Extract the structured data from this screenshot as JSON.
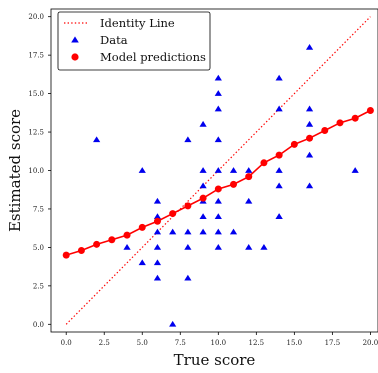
{
  "chart_data": {
    "type": "scatter",
    "xlabel": "True score",
    "ylabel": "Estimated score",
    "xlim": [
      -1,
      20.5
    ],
    "ylim": [
      -0.5,
      20.5
    ],
    "x_ticks": [
      0.0,
      2.5,
      5.0,
      7.5,
      10.0,
      12.5,
      15.0,
      17.5,
      20.0
    ],
    "x_tick_labels": [
      "0.0",
      "2.5",
      "5.0",
      "7.5",
      "10.0",
      "12.5",
      "15.0",
      "17.5",
      "20.0"
    ],
    "y_ticks": [
      0.0,
      2.5,
      5.0,
      7.5,
      10.0,
      12.5,
      15.0,
      17.5,
      20.0
    ],
    "y_tick_labels": [
      "0.0",
      "2.5",
      "5.0",
      "7.5",
      "10.0",
      "12.5",
      "15.0",
      "17.5",
      "20.0"
    ],
    "grid": false,
    "legend_position": "top-left",
    "series": [
      {
        "name": "Identity Line",
        "kind": "line",
        "style": "dotted",
        "color": "#ff0000",
        "x": [
          0,
          20
        ],
        "y": [
          0,
          20
        ]
      },
      {
        "name": "Data",
        "kind": "scatter",
        "marker": "triangle",
        "color": "#0000ee",
        "x": [
          2,
          4,
          5,
          5,
          6,
          6,
          6,
          6,
          6,
          6,
          7,
          7,
          8,
          8,
          8,
          8,
          9,
          9,
          9,
          9,
          9,
          9,
          10,
          10,
          10,
          10,
          10,
          10,
          10,
          10,
          10,
          11,
          11,
          12,
          12,
          12,
          13,
          14,
          14,
          14,
          14,
          14,
          14,
          16,
          16,
          16,
          16,
          16,
          19
        ],
        "y": [
          12,
          5,
          10,
          4,
          3,
          4,
          5,
          6,
          7,
          8,
          0,
          6,
          3,
          5,
          6,
          12,
          6,
          7,
          8,
          9,
          10,
          13,
          5,
          6,
          7,
          8,
          10,
          12,
          14,
          15,
          16,
          6,
          10,
          5,
          8,
          10,
          5,
          7,
          7,
          9,
          10,
          14,
          16,
          9,
          11,
          13,
          14,
          18,
          10
        ]
      },
      {
        "name": "Model predictions",
        "kind": "line-markers",
        "marker": "circle",
        "color": "#ff0000",
        "x": [
          0,
          1,
          2,
          3,
          4,
          5,
          6,
          7,
          8,
          9,
          10,
          11,
          12,
          13,
          14,
          15,
          16,
          17,
          18,
          19,
          20
        ],
        "y": [
          4.5,
          4.8,
          5.2,
          5.5,
          5.8,
          6.3,
          6.7,
          7.2,
          7.7,
          8.2,
          8.8,
          9.1,
          9.6,
          10.5,
          11.0,
          11.7,
          12.1,
          12.6,
          13.1,
          13.4,
          13.9
        ]
      }
    ]
  }
}
